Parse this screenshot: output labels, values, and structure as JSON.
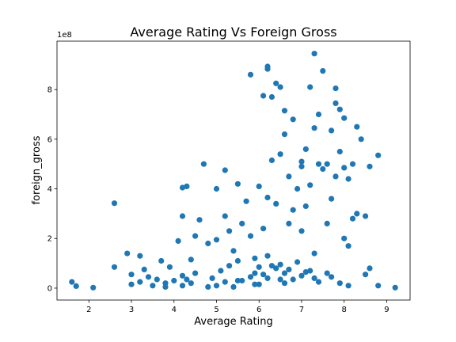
{
  "chart_data": {
    "type": "scatter",
    "title": "Average Rating  Vs Foreign Gross",
    "xlabel": "Average Rating",
    "ylabel": "foreign_gross",
    "y_offset_text": "1e8",
    "xlim": [
      1.25,
      9.55
    ],
    "ylim": [
      -0.48,
      9.95
    ],
    "xticks": [
      "2",
      "3",
      "4",
      "5",
      "6",
      "7",
      "8",
      "9"
    ],
    "yticks": [
      "0",
      "2",
      "4",
      "6",
      "8"
    ],
    "grid": false,
    "legend": "none",
    "color": "#1f77b4",
    "series": [
      {
        "x": [
          1.6,
          1.7,
          2.1,
          2.6,
          2.6,
          2.9,
          3.0,
          3.0,
          3.2,
          3.2,
          3.3,
          3.4,
          3.5,
          3.6,
          3.7,
          3.8,
          3.8,
          3.9,
          4.0,
          4.1,
          4.2,
          4.2,
          4.2,
          4.3,
          4.4,
          4.4,
          4.5,
          4.5,
          4.6,
          4.7,
          4.8,
          4.9,
          5.0,
          5.0,
          5.1,
          5.2,
          5.2,
          5.3,
          5.3,
          5.4,
          5.5,
          5.5,
          5.6,
          5.6,
          5.7,
          5.8,
          5.8,
          5.9,
          5.9,
          6.0,
          6.0,
          6.1,
          6.1,
          6.2,
          6.2,
          6.2,
          6.2,
          6.3,
          6.3,
          6.4,
          6.4,
          6.5,
          6.5,
          6.5,
          6.6,
          6.6,
          6.7,
          6.7,
          6.8,
          6.8,
          6.9,
          6.9,
          7.0,
          7.0,
          7.0,
          7.1,
          7.1,
          7.2,
          7.2,
          7.3,
          7.3,
          7.3,
          7.4,
          7.4,
          7.5,
          7.5,
          7.6,
          7.6,
          7.7,
          7.7,
          7.8,
          7.8,
          7.8,
          7.9,
          7.9,
          8.0,
          8.0,
          8.0,
          8.1,
          8.1,
          8.2,
          8.2,
          8.3,
          8.3,
          8.4,
          8.5,
          8.5,
          8.6,
          8.6,
          8.8,
          8.8,
          9.2,
          4.2,
          4.3,
          4.8,
          5.2,
          5.8,
          6.0,
          6.6,
          6.2,
          6.4,
          6.6,
          6.3,
          6.8,
          7.0,
          7.2,
          7.4,
          7.6,
          5.0,
          5.5,
          6.1,
          6.7,
          7.3,
          7.9,
          5.4,
          5.9,
          6.5,
          7.1,
          7.7,
          8.1
        ],
        "y": [
          0.25,
          0.08,
          0.02,
          0.85,
          3.42,
          1.4,
          0.55,
          0.15,
          1.3,
          0.25,
          0.75,
          0.45,
          0.1,
          0.35,
          1.1,
          0.2,
          0.05,
          0.85,
          0.3,
          1.9,
          4.05,
          2.9,
          0.5,
          4.1,
          0.2,
          1.15,
          2.1,
          0.6,
          2.75,
          5.0,
          1.8,
          0.4,
          1.95,
          4.0,
          0.7,
          4.75,
          2.9,
          2.3,
          0.9,
          1.5,
          4.2,
          1.1,
          2.6,
          0.3,
          3.5,
          8.6,
          2.1,
          0.6,
          1.2,
          4.1,
          0.85,
          7.75,
          2.4,
          8.93,
          8.83,
          3.65,
          1.3,
          7.7,
          5.15,
          8.25,
          3.4,
          8.1,
          5.4,
          0.95,
          7.15,
          6.2,
          4.5,
          2.6,
          6.8,
          3.15,
          4.0,
          1.05,
          5.1,
          4.9,
          2.3,
          5.6,
          3.3,
          8.1,
          4.15,
          9.45,
          6.45,
          1.4,
          7.0,
          5.0,
          8.75,
          4.8,
          5.0,
          2.6,
          6.35,
          3.6,
          8.05,
          7.45,
          4.5,
          7.2,
          5.5,
          6.85,
          4.85,
          2.0,
          4.4,
          1.7,
          5.0,
          2.8,
          6.5,
          3.0,
          6.0,
          2.9,
          0.55,
          4.9,
          0.8,
          5.35,
          0.1,
          0.02,
          0.1,
          0.35,
          0.05,
          0.25,
          0.45,
          0.15,
          0.6,
          0.4,
          0.8,
          0.2,
          0.9,
          0.35,
          0.5,
          0.7,
          0.25,
          0.6,
          0.1,
          0.3,
          0.55,
          0.75,
          0.4,
          0.2,
          0.05,
          0.15,
          0.35,
          0.65,
          0.45,
          0.1
        ]
      }
    ]
  }
}
